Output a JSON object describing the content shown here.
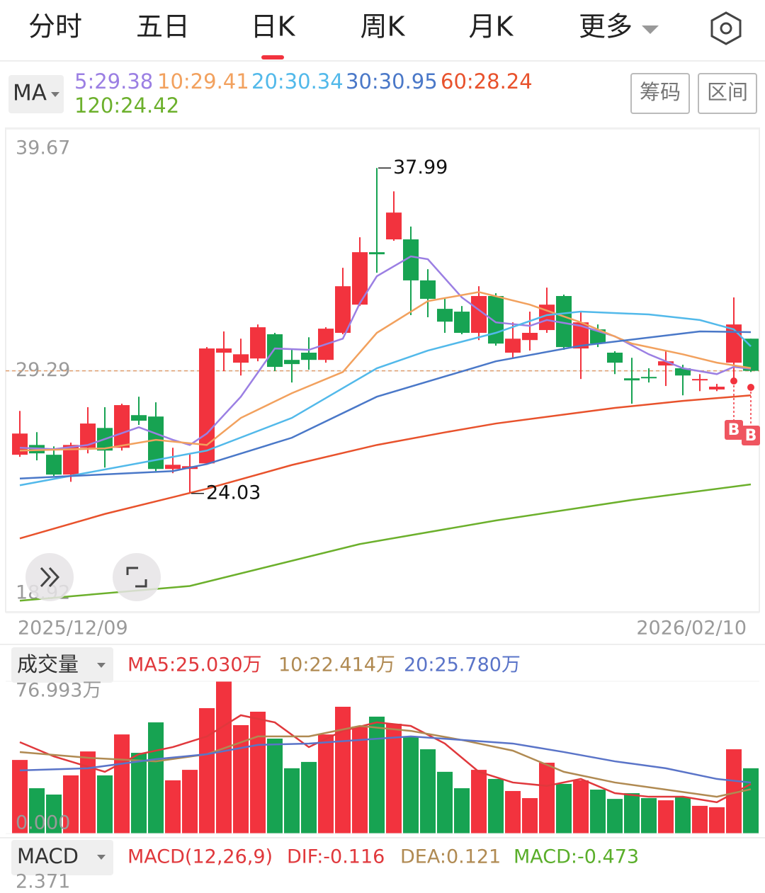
{
  "tabs": [
    "分时",
    "五日",
    "日K",
    "周K",
    "月K",
    "更多"
  ],
  "active_tab": 2,
  "indicator_menu": "MA",
  "buttons": [
    "筹码",
    "区间"
  ],
  "chart_data": [
    {
      "type": "candlestick",
      "ylim": [
        18.92,
        39.67
      ],
      "yticks": [
        39.67,
        29.29,
        18.92
      ],
      "x_labels": [
        "2025/12/09",
        "2026/02/10"
      ],
      "up_color": "#f2333e",
      "down_color": "#17a352",
      "open": [
        25.69,
        26.11,
        25.69,
        24.84,
        25.99,
        26.84,
        25.99,
        27.39,
        27.33,
        25.08,
        25.08,
        25.32,
        30.07,
        29.64,
        29.82,
        30.86,
        29.76,
        30.07,
        29.76,
        30.92,
        32.13,
        34.38,
        34.93,
        34.93,
        33.17,
        31.95,
        31.83,
        30.92,
        32.5,
        30.07,
        30.61,
        31.04,
        32.5,
        30.25,
        31.07,
        30.07,
        28.97,
        29.03,
        29.52,
        29.4,
        28.88,
        28.49,
        29.64,
        30.67
      ],
      "high": [
        27.57,
        26.66,
        26.05,
        26.21,
        27.73,
        27.73,
        27.88,
        28.18,
        27.94,
        25.99,
        25.75,
        30.31,
        30.98,
        30.67,
        31.28,
        30.92,
        30.25,
        30.73,
        31.16,
        33.71,
        35.02,
        37.99,
        36.99,
        35.48,
        33.65,
        32.44,
        32.07,
        32.92,
        32.62,
        31.37,
        31.83,
        32.86,
        32.56,
        31.83,
        31.28,
        30.13,
        29.85,
        29.4,
        30.16,
        29.55,
        29.15,
        28.73,
        32.44,
        30.67
      ],
      "low": [
        25.6,
        25.45,
        24.78,
        24.53,
        25.75,
        25.14,
        25.87,
        26.97,
        24.99,
        24.9,
        24.03,
        25.26,
        29.28,
        29.09,
        29.7,
        29.28,
        28.79,
        29.34,
        29.64,
        30.86,
        32.07,
        33.5,
        34.87,
        31.68,
        31.59,
        30.92,
        30.86,
        30.61,
        30.37,
        29.85,
        30.16,
        30.92,
        30.19,
        28.94,
        30.31,
        29.15,
        27.88,
        28.79,
        28.64,
        28.24,
        28.42,
        28.42,
        28.79,
        29.24
      ],
      "close": [
        26.6,
        25.75,
        24.84,
        26.11,
        27.03,
        25.87,
        27.82,
        27.15,
        25.08,
        25.26,
        25.2,
        30.25,
        30.25,
        30.0,
        31.16,
        29.46,
        29.58,
        29.76,
        31.1,
        32.92,
        34.38,
        34.29,
        36.08,
        33.17,
        32.38,
        31.4,
        30.92,
        32.5,
        30.46,
        30.67,
        30.92,
        32.13,
        30.31,
        31.37,
        30.46,
        29.64,
        28.88,
        28.97,
        29.7,
        29.09,
        28.94,
        28.61,
        31.28,
        29.29
      ],
      "series": [
        {
          "label": "5:29.38",
          "color": "#9b7fe3",
          "x": [
            0,
            2,
            4,
            7,
            9,
            10,
            11,
            13,
            15,
            17,
            19,
            20,
            21,
            23,
            24,
            26,
            28,
            30,
            31,
            33,
            35,
            37,
            39,
            41,
            42,
            43
          ],
          "values": [
            25.99,
            25.93,
            26.11,
            26.87,
            26.33,
            26.11,
            26.6,
            28.18,
            30.25,
            30.19,
            30.67,
            32.19,
            33.35,
            34.2,
            34.08,
            32.44,
            31.37,
            31.22,
            31.47,
            31.22,
            30.77,
            30.0,
            29.4,
            29.15,
            29.46,
            29.38
          ]
        },
        {
          "label": "10:29.41",
          "color": "#f2a15e",
          "x": [
            0,
            5,
            8,
            11,
            13,
            16,
            19,
            21,
            24,
            27,
            30,
            33,
            36,
            39,
            41,
            43
          ],
          "values": [
            25.87,
            25.96,
            26.33,
            26.11,
            27.27,
            28.33,
            29.24,
            30.92,
            32.28,
            32.67,
            32.13,
            31.37,
            30.46,
            30.0,
            29.64,
            29.41
          ]
        },
        {
          "label": "20:30.34",
          "color": "#52b9ea",
          "x": [
            0,
            9,
            11,
            16,
            21,
            24,
            28,
            31,
            33,
            37,
            40,
            42,
            43
          ],
          "values": [
            24.38,
            25.6,
            25.87,
            27.27,
            29.4,
            30.16,
            30.92,
            31.68,
            31.83,
            31.71,
            31.47,
            31.07,
            30.34
          ]
        },
        {
          "label": "30:30.95",
          "color": "#4a78c8",
          "x": [
            0,
            9,
            11,
            16,
            21,
            28,
            33,
            40,
            43
          ],
          "values": [
            24.67,
            24.99,
            25.29,
            26.42,
            28.18,
            29.7,
            30.37,
            30.98,
            30.95
          ]
        },
        {
          "label": "60:28.24",
          "color": "#e8522c",
          "x": [
            0,
            5,
            11,
            16,
            21,
            25,
            28,
            35,
            39,
            43
          ],
          "values": [
            22.1,
            23.15,
            24.23,
            25.25,
            26.11,
            26.65,
            27.03,
            27.7,
            28.0,
            28.24
          ]
        },
        {
          "label": "120:24.42",
          "color": "#6cb02c",
          "x": [
            0,
            10,
            20,
            28,
            36,
            43
          ],
          "values": [
            19.43,
            20.06,
            21.86,
            22.87,
            23.75,
            24.42
          ]
        }
      ],
      "annotations": [
        {
          "x": 21,
          "value": 37.99
        },
        {
          "x": 10,
          "value": 24.03
        }
      ],
      "markers": [
        {
          "x": 42,
          "label": "B"
        },
        {
          "x": 43,
          "label": "B"
        }
      ]
    },
    {
      "type": "bar",
      "menu": "成交量",
      "ylim": [
        0,
        76.993
      ],
      "yticks": [
        {
          "value": 76.993,
          "label": "76.993万"
        },
        {
          "value": 0,
          "label": "0.000"
        }
      ],
      "values": [
        37.2,
        22.9,
        19.7,
        29.4,
        41.5,
        29.4,
        50.1,
        40.8,
        56.2,
        26.9,
        32.2,
        63.4,
        76.993,
        54.8,
        61.6,
        48.0,
        33.0,
        36.2,
        50.1,
        64.1,
        54.1,
        59.1,
        55.5,
        49.1,
        42.6,
        31.2,
        22.9,
        32.2,
        27.6,
        21.5,
        17.9,
        35.8,
        25.1,
        26.9,
        22.2,
        17.5,
        20.4,
        17.9,
        16.8,
        18.3,
        14.0,
        13.3,
        42.6,
        33.0
      ],
      "series": [
        {
          "label": "MA5:25.030万",
          "color": "#e0383c",
          "x": [
            0,
            2,
            5,
            7,
            9,
            11,
            13,
            15,
            17,
            19,
            21,
            23,
            25,
            27,
            29,
            31,
            33,
            35,
            37,
            39,
            41,
            43
          ],
          "values": [
            46.2,
            39.0,
            31.2,
            40.1,
            43.7,
            49.1,
            59.8,
            56.2,
            43.7,
            51.9,
            56.2,
            54.4,
            45.5,
            31.2,
            25.8,
            24.1,
            27.6,
            20.4,
            18.6,
            18.6,
            15.8,
            25.03
          ]
        },
        {
          "label": "10:22.414万",
          "color": "#b08a52",
          "x": [
            0,
            4,
            8,
            11,
            14,
            17,
            20,
            23,
            26,
            29,
            32,
            35,
            38,
            41,
            43
          ],
          "values": [
            41.2,
            38.3,
            36.5,
            40.1,
            49.1,
            49.1,
            54.4,
            51.9,
            47.3,
            41.9,
            31.2,
            25.8,
            22.2,
            18.6,
            22.414
          ]
        },
        {
          "label": "20:25.780万",
          "color": "#5a74c8",
          "x": [
            0,
            4,
            8,
            11,
            14,
            17,
            20,
            23,
            26,
            29,
            32,
            35,
            38,
            41,
            43
          ],
          "values": [
            31.9,
            33.0,
            37.6,
            40.1,
            44.8,
            45.5,
            47.3,
            49.1,
            47.3,
            45.5,
            41.2,
            36.5,
            33.0,
            27.6,
            25.78
          ]
        }
      ]
    }
  ],
  "macd": {
    "menu": "MACD",
    "labels": [
      {
        "text": "MACD(12,26,9)",
        "color": "#e0383c"
      },
      {
        "text": "DIF:-0.116",
        "color": "#e0383c"
      },
      {
        "text": "DEA:0.121",
        "color": "#b08a52"
      },
      {
        "text": "MACD:-0.473",
        "color": "#5aae2a"
      }
    ],
    "ymax": 2.371
  }
}
